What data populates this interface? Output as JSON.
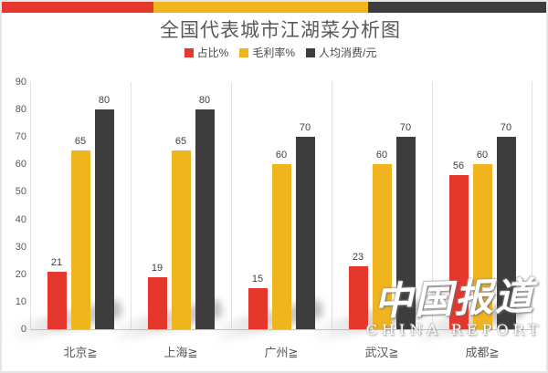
{
  "header": {
    "top_bar_segments": [
      {
        "name": "red-segment",
        "color": "#e5372c",
        "width_pct": 27.8
      },
      {
        "name": "yellow-segment",
        "color": "#f0b41e",
        "width_pct": 39.4
      },
      {
        "name": "dark-segment",
        "color": "#3d3d3d",
        "width_pct": 32.8
      }
    ]
  },
  "watermark": {
    "cn": "中国报道",
    "en": "CHINA REPORT"
  },
  "chart_data": {
    "type": "bar",
    "title": "全国代表城市江湖菜分析图",
    "categories": [
      "北京≧",
      "上海≧",
      "广州≧",
      "武汉≧",
      "成都≧"
    ],
    "series": [
      {
        "name": "占比%",
        "color": "#e5372c",
        "values": [
          21,
          19,
          15,
          23,
          56
        ]
      },
      {
        "name": "毛利率%",
        "color": "#f0b41e",
        "values": [
          65,
          65,
          60,
          60,
          60
        ]
      },
      {
        "name": "人均消费/元",
        "color": "#3d3d3d",
        "values": [
          80,
          80,
          70,
          70,
          70
        ]
      }
    ],
    "ylim": [
      0,
      90
    ],
    "yticks": [
      0,
      10,
      20,
      30,
      40,
      50,
      60,
      70,
      80,
      90
    ],
    "xlabel": "",
    "ylabel": "",
    "legend_position": "top-center",
    "data_labels": true,
    "grid": "vertical-category-separators",
    "colors": {
      "axis_text": "#595959",
      "value_label_text": "#404040",
      "separator_line": "#e1e1e1",
      "baseline": "#c9c9c9"
    }
  }
}
